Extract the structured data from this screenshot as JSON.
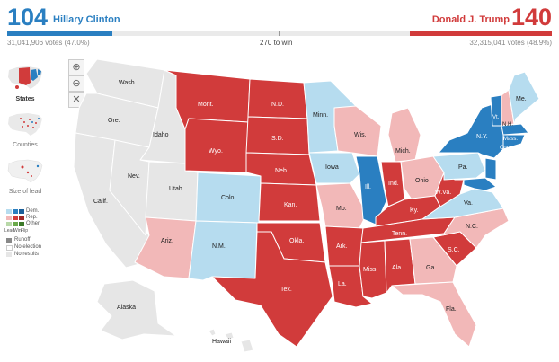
{
  "header": {
    "clinton": {
      "ev": "104",
      "name": "Hillary Clinton",
      "votes": "31,041,906 votes (47.0%)"
    },
    "trump": {
      "ev": "140",
      "name": "Donald J. Trump",
      "votes": "32,315,041 votes (48.9%)"
    },
    "to_win": "270 to win",
    "colors": {
      "dem": "#2a7fc1",
      "rep": "#d13b3b",
      "dem_light": "#b6dcef",
      "rep_light": "#f2b8b8",
      "none": "#e6e6e6"
    },
    "progress": {
      "dem_fraction": 0.1933,
      "rep_fraction": 0.2602
    }
  },
  "controls": {
    "zoom_in": "⊕",
    "zoom_out": "⊖",
    "reset": "✕"
  },
  "views": {
    "states": "States",
    "counties": "Counties",
    "size_of_lead": "Size of lead"
  },
  "legend": {
    "dem": "Dem.",
    "rep": "Rep.",
    "other": "Other",
    "lead": "Lead",
    "win": "Win",
    "flip": "Flip",
    "runoff": "Runoff",
    "no_election": "No election",
    "no_results": "No results"
  },
  "states": {
    "wash": "Wash.",
    "ore": "Ore.",
    "idaho": "Idaho",
    "calif": "Calif.",
    "nev": "Nev.",
    "utah": "Utah",
    "ariz": "Ariz.",
    "mont": "Mont.",
    "wyo": "Wyo.",
    "colo": "Colo.",
    "nm": "N.M.",
    "nd": "N.D.",
    "sd": "S.D.",
    "neb": "Neb.",
    "kan": "Kan.",
    "okla": "Okla.",
    "tex": "Tex.",
    "minn": "Minn.",
    "iowa": "Iowa",
    "mo": "Mo.",
    "ark": "Ark.",
    "la": "La.",
    "wis": "Wis.",
    "ill": "Ill.",
    "mich": "Mich.",
    "ind": "Ind.",
    "ohio": "Ohio",
    "ky": "Ky.",
    "tenn": "Tenn.",
    "miss": "Miss.",
    "ala": "Ala.",
    "ga": "Ga.",
    "fla": "Fla.",
    "sc": "S.C.",
    "nc": "N.C.",
    "va": "Va.",
    "wva": "W.Va.",
    "pa": "Pa.",
    "ny": "N.Y.",
    "vt": "Vt.",
    "nh": "N.H.",
    "me": "Me.",
    "mass": "Mass.",
    "conn": "Conn.",
    "alaska": "Alaska",
    "hawaii": "Hawaii"
  }
}
